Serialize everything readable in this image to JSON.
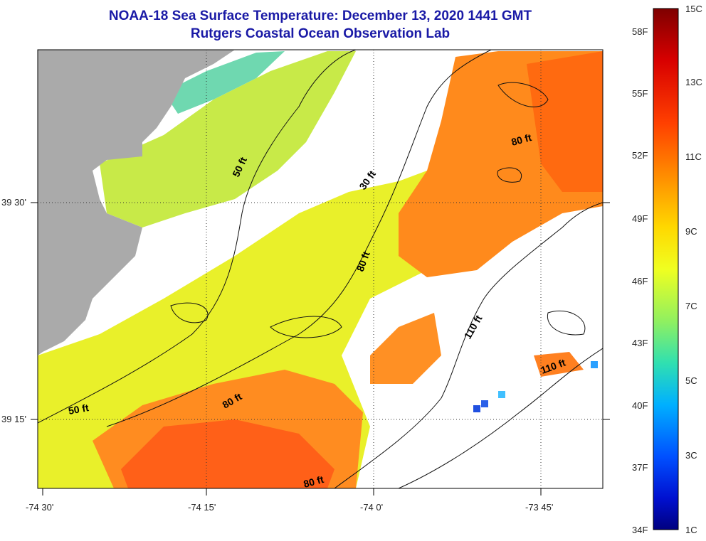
{
  "title": "NOAA-18 Sea Surface Temperature:  December 13, 2020 1441 GMT",
  "subtitle": "Rutgers Coastal Ocean Observation Lab",
  "x_ticks": [
    "-74 30'",
    "-74 15'",
    "-74 0'",
    "-73 45'"
  ],
  "y_ticks": [
    "39 30'",
    "39 15'"
  ],
  "contour_labels": [
    "50 ft",
    "30 ft",
    "80 ft",
    "80 ft",
    "110 ft",
    "50 ft",
    "80 ft",
    "110 ft",
    "80 ft"
  ],
  "colorbar": {
    "fahrenheit": [
      "58F",
      "55F",
      "52F",
      "49F",
      "46F",
      "43F",
      "40F",
      "37F",
      "34F"
    ],
    "celsius": [
      "15C",
      "13C",
      "11C",
      "9C",
      "7C",
      "5C",
      "3C",
      "1C"
    ],
    "colors": [
      "#7f0000",
      "#d40000",
      "#ff3b00",
      "#ff8c00",
      "#ffd000",
      "#ffff00",
      "#b0f040",
      "#40e0a0",
      "#00c0ff",
      "#0070ff",
      "#0000c8",
      "#00007f"
    ]
  },
  "legend_colors": {
    "land": "#aaaaaa",
    "no_data": "#ffffff"
  }
}
